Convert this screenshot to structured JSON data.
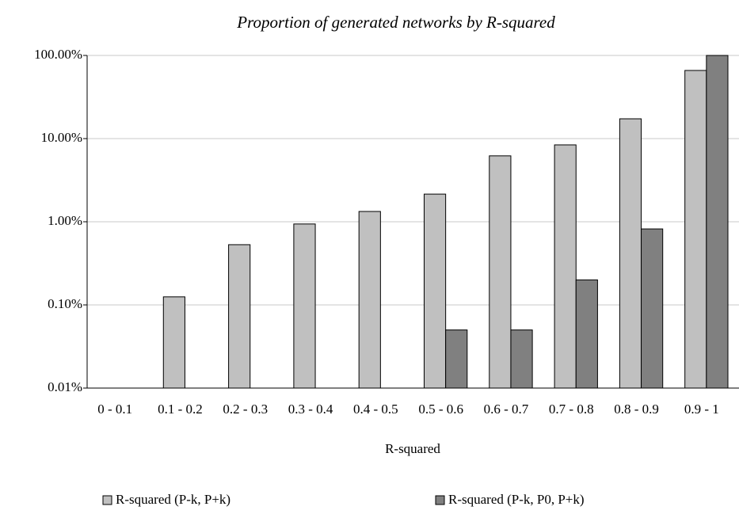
{
  "chart_data": {
    "type": "bar",
    "title": "Proportion of generated networks by R-squared",
    "x_label": "R-squared",
    "categories": [
      "0 - 0.1",
      "0.1 - 0.2",
      "0.2 - 0.3",
      "0.3 - 0.4",
      "0.4 - 0.5",
      "0.5 - 0.6",
      "0.6 - 0.7",
      "0.7 - 0.8",
      "0.8 - 0.9",
      "0.9 - 1"
    ],
    "series": [
      {
        "name": "R-squared (P-k, P+k)",
        "color": "#c0c0c0",
        "values": [
          null,
          0.125,
          0.53,
          0.94,
          1.33,
          2.15,
          6.2,
          8.4,
          17.3,
          66
        ]
      },
      {
        "name": "R-squared (P-k, P0, P+k)",
        "color": "#808080",
        "values": [
          null,
          null,
          null,
          null,
          null,
          0.05,
          0.05,
          0.2,
          0.82,
          100
        ]
      }
    ],
    "ylim": [
      0.01,
      100
    ],
    "log_y": true,
    "grid": true,
    "legend": "bottom",
    "yticks": [
      {
        "value": 0.01,
        "label": "0.01%"
      },
      {
        "value": 0.1,
        "label": "0.10%"
      },
      {
        "value": 1,
        "label": "1.00%"
      },
      {
        "value": 10,
        "label": "10.00%"
      },
      {
        "value": 100,
        "label": "100.00%"
      }
    ]
  }
}
